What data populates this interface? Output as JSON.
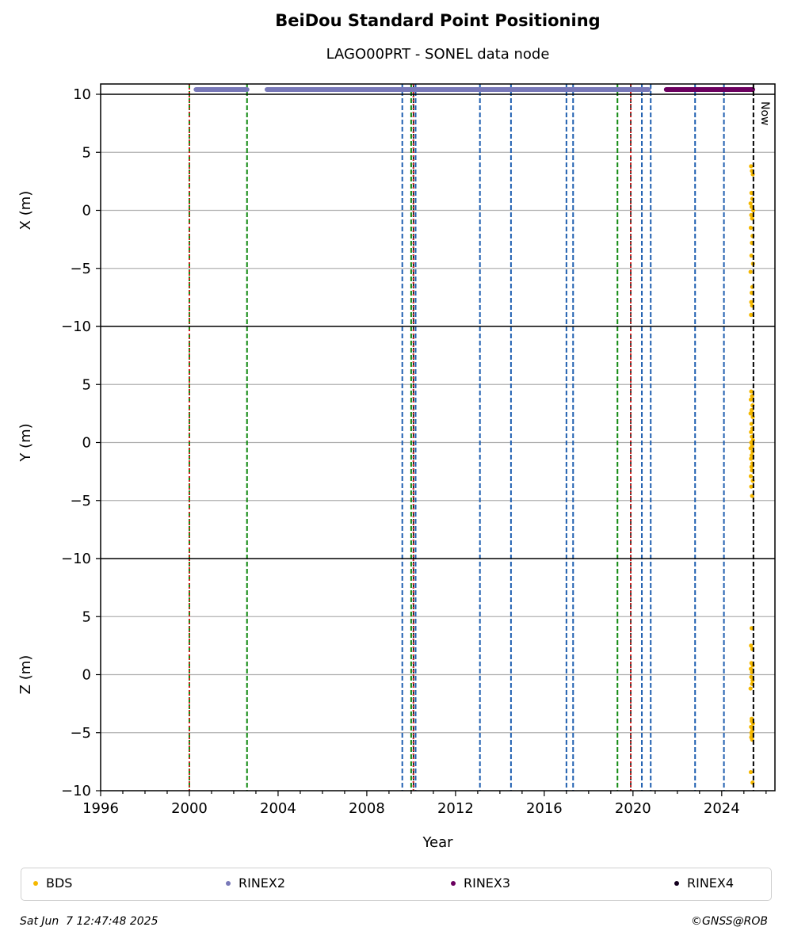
{
  "chart_data": {
    "type": "scatter",
    "title": "BeiDou Standard Point Positioning",
    "subtitle": "LAGO00PRT - SONEL data node",
    "xlabel": "Year",
    "xlim": [
      1996,
      2026.4
    ],
    "x_ticks": [
      1996,
      2000,
      2004,
      2008,
      2012,
      2016,
      2020,
      2024
    ],
    "x_tick_labels": [
      "1996",
      "2000",
      "2004",
      "2008",
      "2012",
      "2016",
      "2020",
      "2024"
    ],
    "now_label": "Now",
    "now_x": 2025.43,
    "panels": [
      {
        "id": "x",
        "ylabel": "X (m)",
        "ylim": [
          -10,
          10
        ],
        "y_ticks": [
          10,
          5,
          0,
          -5,
          -10
        ],
        "y_tick_labels": [
          "10",
          "5",
          "0",
          "−5",
          "−10"
        ],
        "bds_x": [
          2025.32,
          2025.36,
          2025.4,
          2025.34,
          2025.38,
          2025.3,
          2025.35,
          2025.42,
          2025.33,
          2025.37,
          2025.31,
          2025.39,
          2025.36,
          2025.34,
          2025.41,
          2025.3,
          2025.38,
          2025.35,
          2025.33,
          2025.37,
          2025.32
        ],
        "bds_y": [
          3.8,
          3.4,
          3.1,
          1.5,
          1.0,
          0.6,
          0.3,
          0.0,
          -0.4,
          -0.7,
          -1.5,
          -2.2,
          -2.8,
          -3.9,
          -4.6,
          -5.3,
          -6.6,
          -7.1,
          -7.9,
          -8.2,
          -9.0
        ]
      },
      {
        "id": "y",
        "ylabel": "Y (m)",
        "ylim": [
          -10,
          10
        ],
        "y_ticks": [
          10,
          5,
          0,
          -5,
          -10
        ],
        "y_tick_labels": [
          "",
          "5",
          "0",
          "−5",
          "−10"
        ],
        "bds_x": [
          2025.33,
          2025.37,
          2025.31,
          2025.39,
          2025.35,
          2025.3,
          2025.4,
          2025.34,
          2025.38,
          2025.32,
          2025.36,
          2025.41,
          2025.33,
          2025.37,
          2025.3,
          2025.39,
          2025.35,
          2025.32,
          2025.38,
          2025.34,
          2025.36,
          2025.31,
          2025.4,
          2025.33,
          2025.37,
          2025.35
        ],
        "bds_y": [
          4.4,
          4.0,
          3.7,
          3.2,
          2.8,
          2.5,
          2.2,
          1.6,
          1.2,
          0.9,
          0.5,
          0.2,
          0.0,
          -0.3,
          -0.5,
          -0.8,
          -1.1,
          -1.4,
          -1.8,
          -2.1,
          -2.4,
          -2.9,
          -3.3,
          -3.8,
          -4.6,
          2.6
        ]
      },
      {
        "id": "z",
        "ylabel": "Z (m)",
        "ylim": [
          -10,
          10
        ],
        "y_ticks": [
          10,
          5,
          0,
          -5,
          -10
        ],
        "y_tick_labels": [
          "",
          "5",
          "0",
          "−5",
          "−10"
        ],
        "bds_x": [
          2025.35,
          2025.32,
          2025.38,
          2025.34,
          2025.4,
          2025.31,
          2025.36,
          2025.33,
          2025.39,
          2025.37,
          2025.3,
          2025.35,
          2025.41,
          2025.32,
          2025.38,
          2025.34,
          2025.36,
          2025.33,
          2025.37,
          2025.31,
          2025.39,
          2025.35
        ],
        "bds_y": [
          4.0,
          2.5,
          2.2,
          1.0,
          0.8,
          0.5,
          0.2,
          -0.2,
          -0.5,
          -0.8,
          -1.2,
          -3.8,
          -4.2,
          -4.5,
          -4.8,
          -5.0,
          -5.2,
          -5.4,
          -5.6,
          -8.4,
          -9.3,
          -4.0
        ]
      }
    ],
    "coverage_rinex2": [
      [
        2000.3,
        2002.6
      ],
      [
        2003.5,
        2020.7
      ]
    ],
    "coverage_rinex3": [
      [
        2021.5,
        2025.4
      ]
    ],
    "vlines_blue": [
      2009.6,
      2010.2,
      2013.1,
      2014.5,
      2017.0,
      2017.3,
      2020.4,
      2020.8,
      2022.8,
      2024.1
    ],
    "vlines_green": [
      2000.0,
      2002.6,
      2010.0,
      2019.3
    ],
    "vlines_red": [
      2000.0,
      2010.1,
      2019.9
    ],
    "vlines_black": [
      2010.1,
      2019.9
    ],
    "legend": [
      {
        "label": "BDS",
        "color": "#f5b800"
      },
      {
        "label": "RINEX2",
        "color": "#7878b8"
      },
      {
        "label": "RINEX3",
        "color": "#6b005f"
      },
      {
        "label": "RINEX4",
        "color": "#14001e"
      }
    ],
    "colors": {
      "bds": "#f5b800",
      "rinex2": "#7878b8",
      "rinex3": "#6b005f",
      "blue": "#1f5fb0",
      "green": "#128a12",
      "red": "#d41c1c",
      "grid": "#b0b0b0"
    }
  },
  "footer": {
    "timestamp": "Sat Jun  7 12:47:48 2025",
    "copyright": "©GNSS@ROB"
  }
}
